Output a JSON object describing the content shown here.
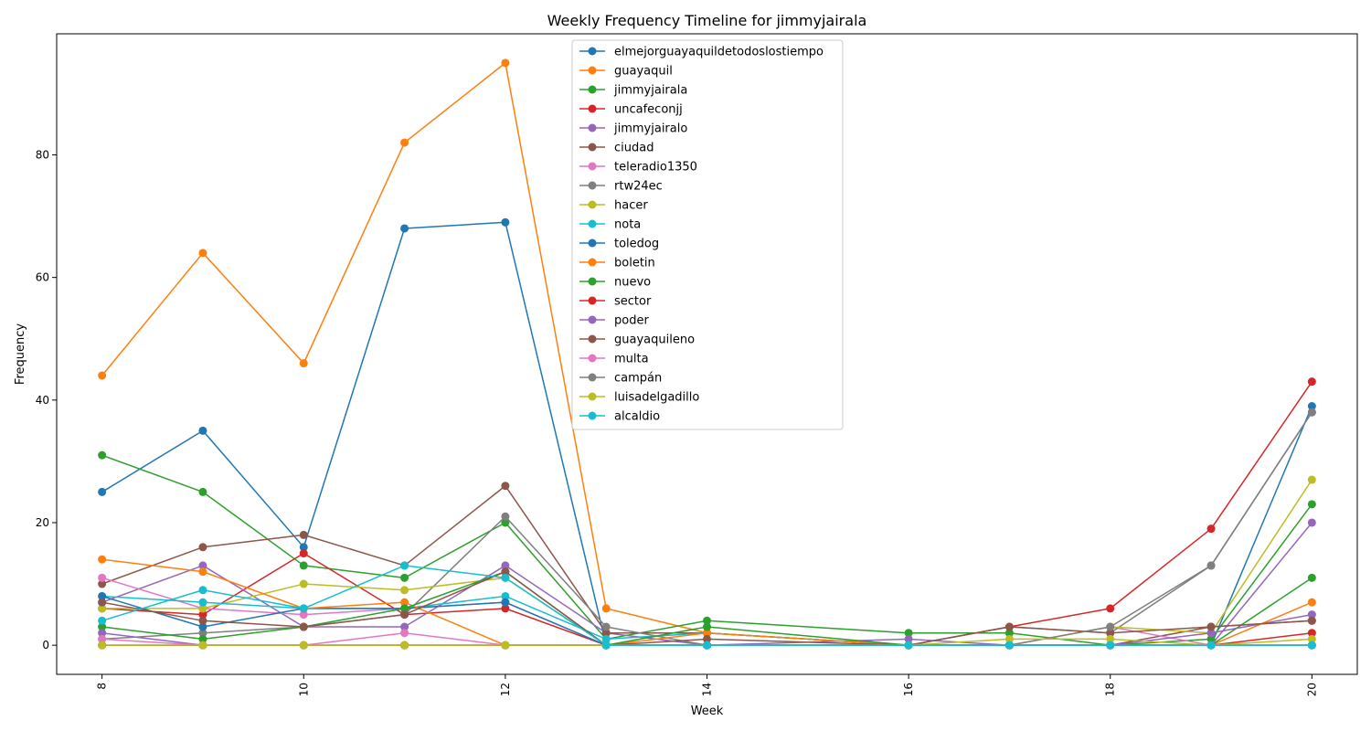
{
  "chart_data": {
    "type": "line",
    "title": "Weekly Frequency Timeline for jimmyjairala",
    "xlabel": "Week",
    "ylabel": "Frequency",
    "x": [
      8,
      9,
      10,
      11,
      12,
      13,
      14,
      16,
      17,
      18,
      19,
      20
    ],
    "x_ticks": [
      8,
      10,
      12,
      14,
      16,
      18,
      20
    ],
    "y_ticks": [
      0,
      20,
      40,
      60,
      80
    ],
    "xlim": [
      7.55,
      20.45
    ],
    "ylim": [
      -4.75,
      99.75
    ],
    "legend_position": "top-center",
    "grid": false,
    "series": [
      {
        "name": "elmejorguayaquildetodoslostiempo",
        "color": "#1f77b4",
        "values": [
          25,
          35,
          16,
          68,
          69,
          0,
          0,
          0,
          0,
          0,
          0,
          39
        ]
      },
      {
        "name": "guayaquil",
        "color": "#ff7f0e",
        "values": [
          44,
          64,
          46,
          82,
          95,
          6,
          2,
          0,
          0,
          0,
          0,
          7
        ]
      },
      {
        "name": "jimmyjairala",
        "color": "#2ca02c",
        "values": [
          31,
          25,
          13,
          11,
          20,
          1,
          4,
          2,
          2,
          0,
          1,
          23
        ]
      },
      {
        "name": "uncafeconjj",
        "color": "#d62728",
        "values": [
          6,
          5,
          15,
          5,
          6,
          0,
          0,
          0,
          3,
          6,
          19,
          43
        ]
      },
      {
        "name": "jimmyjairalo",
        "color": "#9467bd",
        "values": [
          7,
          13,
          3,
          3,
          13,
          2,
          0,
          1,
          0,
          0,
          0,
          20
        ]
      },
      {
        "name": "ciudad",
        "color": "#8c564b",
        "values": [
          10,
          16,
          18,
          13,
          26,
          2,
          2,
          0,
          0,
          0,
          3,
          4
        ]
      },
      {
        "name": "teleradio1350",
        "color": "#e377c2",
        "values": [
          11,
          6,
          5,
          6,
          7,
          0,
          0,
          0,
          0,
          3,
          0,
          0
        ]
      },
      {
        "name": "rtw24ec",
        "color": "#7f7f7f",
        "values": [
          1,
          2,
          3,
          5,
          21,
          3,
          0,
          0,
          3,
          2,
          13,
          38
        ]
      },
      {
        "name": "hacer",
        "color": "#bcbd22",
        "values": [
          6,
          6,
          10,
          9,
          11,
          0,
          0,
          0,
          0,
          3,
          2,
          27
        ]
      },
      {
        "name": "nota",
        "color": "#17becf",
        "values": [
          8,
          7,
          6,
          6,
          8,
          1,
          2,
          0,
          0,
          0,
          0,
          0
        ]
      },
      {
        "name": "toledog",
        "color": "#1f77b4",
        "values": [
          8,
          3,
          6,
          6,
          7,
          0,
          0,
          0,
          0,
          0,
          0,
          0
        ]
      },
      {
        "name": "boletin",
        "color": "#ff7f0e",
        "values": [
          14,
          12,
          6,
          7,
          0,
          0,
          2,
          0,
          0,
          0,
          0,
          0
        ]
      },
      {
        "name": "nuevo",
        "color": "#2ca02c",
        "values": [
          3,
          1,
          3,
          6,
          12,
          0,
          3,
          0,
          0,
          0,
          0,
          11
        ]
      },
      {
        "name": "sector",
        "color": "#d62728",
        "values": [
          0,
          0,
          0,
          0,
          0,
          0,
          0,
          0,
          0,
          0,
          0,
          2
        ]
      },
      {
        "name": "poder",
        "color": "#9467bd",
        "values": [
          2,
          0,
          0,
          0,
          0,
          0,
          0,
          0,
          0,
          0,
          2,
          5
        ]
      },
      {
        "name": "guayaquileno",
        "color": "#8c564b",
        "values": [
          7,
          4,
          3,
          5,
          12,
          0,
          1,
          0,
          3,
          2,
          3,
          4
        ]
      },
      {
        "name": "multa",
        "color": "#e377c2",
        "values": [
          1,
          0,
          0,
          2,
          0,
          0,
          0,
          0,
          0,
          0,
          0,
          0
        ]
      },
      {
        "name": "campán",
        "color": "#7f7f7f",
        "values": [
          0,
          0,
          0,
          0,
          0,
          0,
          0,
          0,
          0,
          3,
          13,
          38
        ]
      },
      {
        "name": "luisadelgadillo",
        "color": "#bcbd22",
        "values": [
          0,
          0,
          0,
          0,
          0,
          0,
          0,
          0,
          1,
          1,
          0,
          1
        ]
      },
      {
        "name": "alcaldio",
        "color": "#17becf",
        "values": [
          4,
          9,
          6,
          13,
          11,
          0,
          0,
          0,
          0,
          0,
          0,
          0
        ]
      }
    ]
  }
}
